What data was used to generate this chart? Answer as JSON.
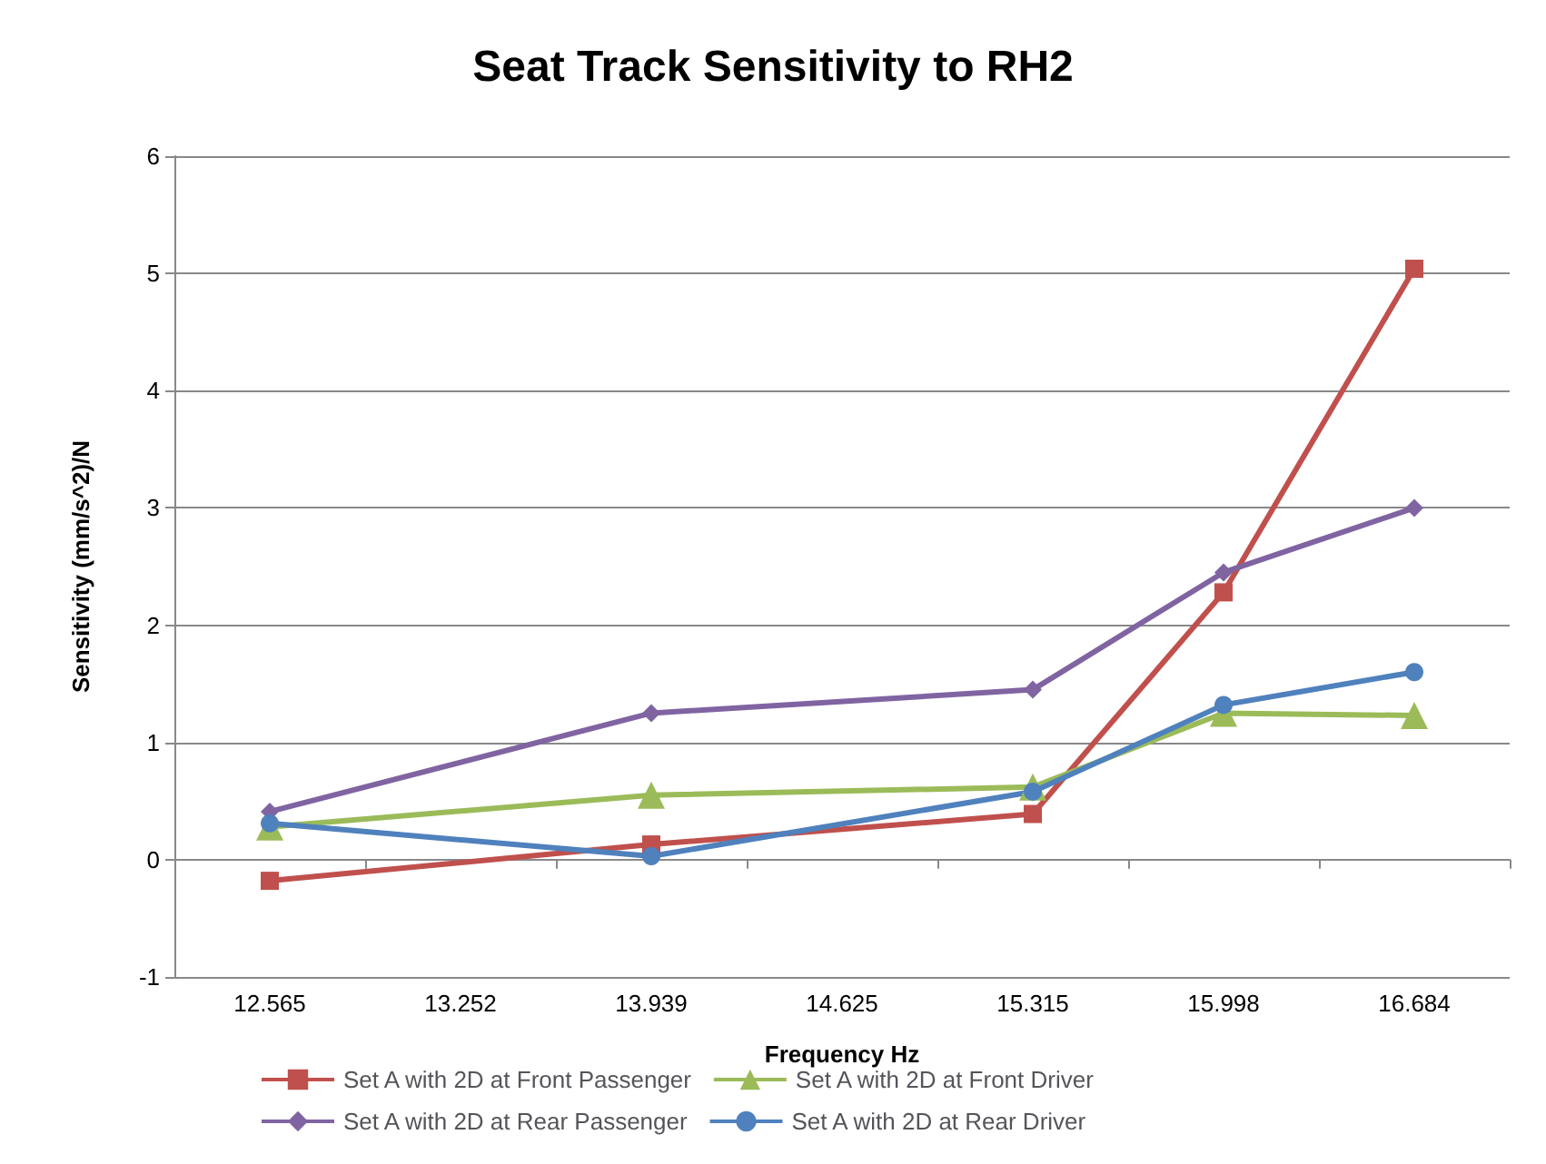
{
  "chart_data": {
    "type": "line",
    "title": "Seat Track Sensitivity to RH2",
    "xlabel": "Frequency Hz",
    "ylabel": "Sensitivity (mm/s^2)/N",
    "categories": [
      "12.565",
      "13.252",
      "13.939",
      "14.625",
      "15.315",
      "15.998",
      "16.684"
    ],
    "series": [
      {
        "name": "Set A with 2D at Front Passenger",
        "color": "#c0504d",
        "marker": "square",
        "values": [
          -0.18,
          null,
          0.13,
          null,
          0.39,
          2.28,
          5.04
        ]
      },
      {
        "name": "Set A with 2D at Front Driver",
        "color": "#9bbb59",
        "marker": "triangle",
        "values": [
          0.28,
          null,
          0.55,
          null,
          0.62,
          1.25,
          1.23
        ]
      },
      {
        "name": "Set A with 2D at Rear Passenger",
        "color": "#8064a2",
        "marker": "diamond",
        "values": [
          0.41,
          null,
          1.25,
          null,
          1.45,
          2.45,
          3.0
        ]
      },
      {
        "name": "Set A with 2D at Rear Driver",
        "color": "#4f81bd",
        "marker": "circle",
        "values": [
          0.31,
          null,
          0.03,
          null,
          0.58,
          1.32,
          1.6
        ]
      }
    ],
    "ylim": [
      -1,
      6
    ],
    "yticks": [
      -1,
      0,
      1,
      2,
      3,
      4,
      5,
      6
    ],
    "grid": "y",
    "legend": "bottom",
    "line_style": "solid"
  }
}
